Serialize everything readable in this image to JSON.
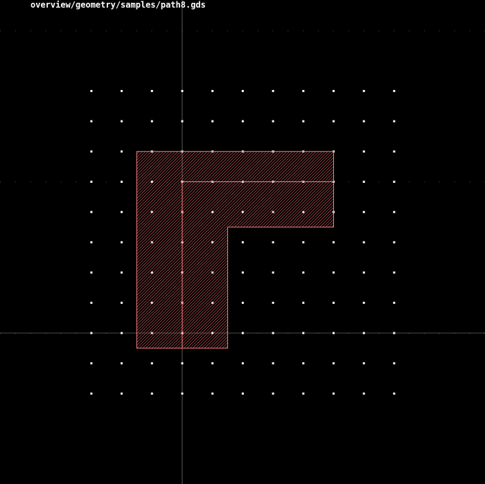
{
  "title": "overview/geometry/samples/path8.gds",
  "colors": {
    "background": "#000000",
    "grid_dot": "#ffffff",
    "axis": "#9a9a9a",
    "shape_outline": "#ff8080",
    "shape_hatch": "#ff7070",
    "path_centerline": "#ff8080"
  },
  "layout": {
    "grid_spacing_units": 1,
    "grid_range_x": [
      -3,
      7
    ],
    "grid_range_y": [
      -2,
      8
    ],
    "polygon": [
      [
        -1.5,
        -0.5
      ],
      [
        -1.5,
        6.0
      ],
      [
        5.0,
        6.0
      ],
      [
        5.0,
        3.5
      ],
      [
        1.5,
        3.5
      ],
      [
        1.5,
        -0.5
      ]
    ],
    "path_centerline": [
      [
        0,
        -0.5
      ],
      [
        0,
        5
      ],
      [
        5,
        5
      ]
    ]
  }
}
